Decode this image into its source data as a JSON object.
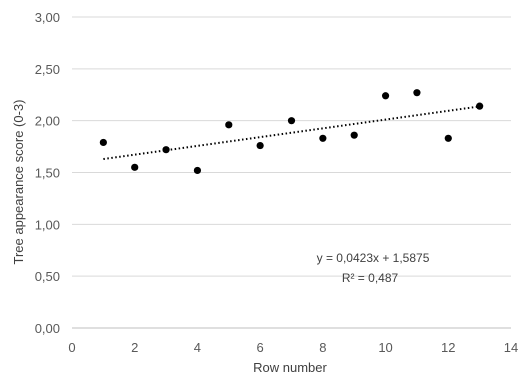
{
  "chart_data": {
    "type": "scatter",
    "xlabel": "Row number",
    "ylabel": "Tree appearance score (0-3)",
    "xlim": [
      0,
      14
    ],
    "ylim": [
      0,
      3
    ],
    "x_ticks": [
      0,
      2,
      4,
      6,
      8,
      10,
      12,
      14
    ],
    "y_ticks": [
      0,
      0.5,
      1,
      1.5,
      2,
      2.5,
      3
    ],
    "x_tick_labels": [
      "0",
      "2",
      "4",
      "6",
      "8",
      "10",
      "12",
      "14"
    ],
    "y_tick_labels": [
      "0,00",
      "0,50",
      "1,00",
      "1,50",
      "2,00",
      "2,50",
      "3,00"
    ],
    "grid": "horizontal",
    "points": [
      {
        "x": 1,
        "y": 1.79
      },
      {
        "x": 2,
        "y": 1.55
      },
      {
        "x": 3,
        "y": 1.72
      },
      {
        "x": 4,
        "y": 1.52
      },
      {
        "x": 5,
        "y": 1.96
      },
      {
        "x": 6,
        "y": 1.76
      },
      {
        "x": 7,
        "y": 2.0
      },
      {
        "x": 8,
        "y": 1.83
      },
      {
        "x": 9,
        "y": 1.86
      },
      {
        "x": 10,
        "y": 2.24
      },
      {
        "x": 11,
        "y": 2.27
      },
      {
        "x": 12,
        "y": 1.83
      },
      {
        "x": 13,
        "y": 2.14
      }
    ],
    "trendline": {
      "type": "linear",
      "slope": 0.0423,
      "intercept": 1.5875,
      "x_range": [
        1,
        13
      ],
      "equation": "y = 0,0423x + 1,5875",
      "r_squared": "R² = 0,487"
    },
    "colors": {
      "marker": "#000000",
      "trendline": "#000000",
      "grid": "#d9d9d9",
      "text": "#595959"
    }
  }
}
